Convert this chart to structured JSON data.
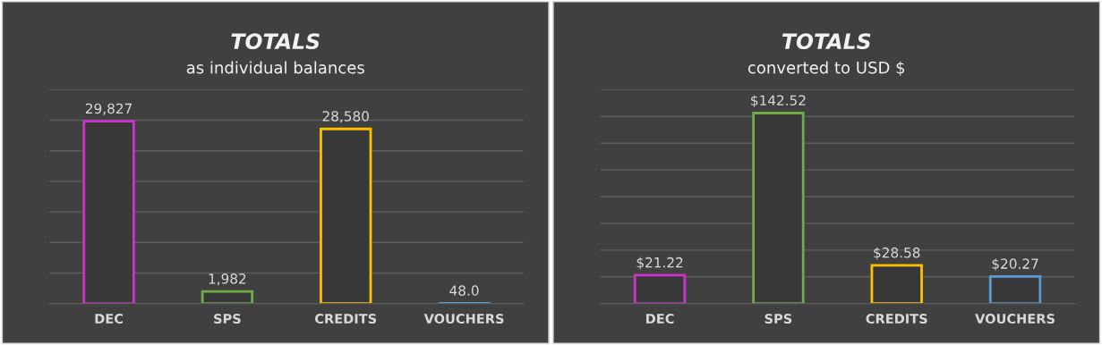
{
  "chart_data": [
    {
      "type": "bar",
      "title": "TOTALS",
      "subtitle": "as individual balances",
      "categories": [
        "DEC",
        "SPS",
        "CREDITS",
        "VOUCHERS"
      ],
      "values": [
        29827,
        1982,
        28580,
        48.0
      ],
      "value_labels": [
        "29,827",
        "1,982",
        "28,580",
        "48.0"
      ],
      "colors": [
        "#cc33cc",
        "#70ad47",
        "#ffc000",
        "#5b9bd5"
      ],
      "ylim": [
        0,
        35000
      ],
      "yticks": [
        {
          "value": 0,
          "label": null
        },
        {
          "value": 5000,
          "label": null
        },
        {
          "value": 10000,
          "label": null
        },
        {
          "value": 15000,
          "label": null
        },
        {
          "value": 20000,
          "label": null
        },
        {
          "value": 25000,
          "label": null
        },
        {
          "value": 30000,
          "label": null
        },
        {
          "value": 35000,
          "label": null
        }
      ],
      "grid": "y",
      "tick_labels": "x"
    },
    {
      "type": "bar",
      "title": "TOTALS",
      "subtitle": "converted to USD $",
      "categories": [
        "DEC",
        "SPS",
        "CREDITS",
        "VOUCHERS"
      ],
      "values": [
        21.22,
        142.52,
        28.58,
        20.27
      ],
      "value_labels": [
        "$21.22",
        "$142.52",
        "$28.58",
        "$20.27"
      ],
      "colors": [
        "#cc33cc",
        "#70ad47",
        "#ffc000",
        "#5b9bd5"
      ],
      "ylim": [
        0,
        160
      ],
      "yticks": [
        {
          "value": 0,
          "label": null
        },
        {
          "value": 20,
          "label": null
        },
        {
          "value": 40,
          "label": null
        },
        {
          "value": 60,
          "label": null
        },
        {
          "value": 80,
          "label": null
        },
        {
          "value": 100,
          "label": null
        },
        {
          "value": 120,
          "label": null
        },
        {
          "value": 140,
          "label": null
        },
        {
          "value": 160,
          "label": null
        }
      ],
      "grid": "y",
      "tick_labels": "x"
    }
  ]
}
